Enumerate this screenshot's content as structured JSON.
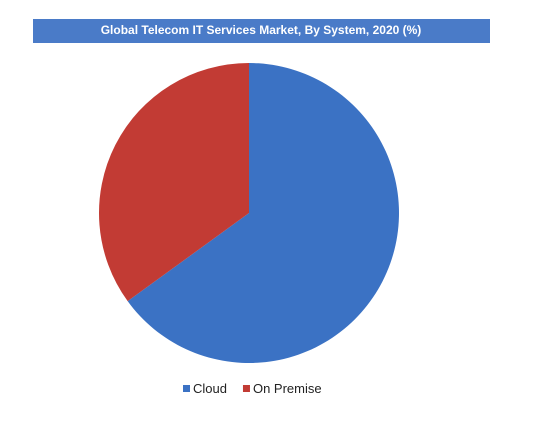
{
  "chart_data": {
    "type": "pie",
    "title": "Global Telecom IT Services Market, By System, 2020 (%)",
    "categories": [
      "Cloud",
      "On Premise"
    ],
    "values": [
      65,
      35
    ],
    "colors": [
      "#3b72c4",
      "#c23b34"
    ],
    "legend": "bottom"
  }
}
